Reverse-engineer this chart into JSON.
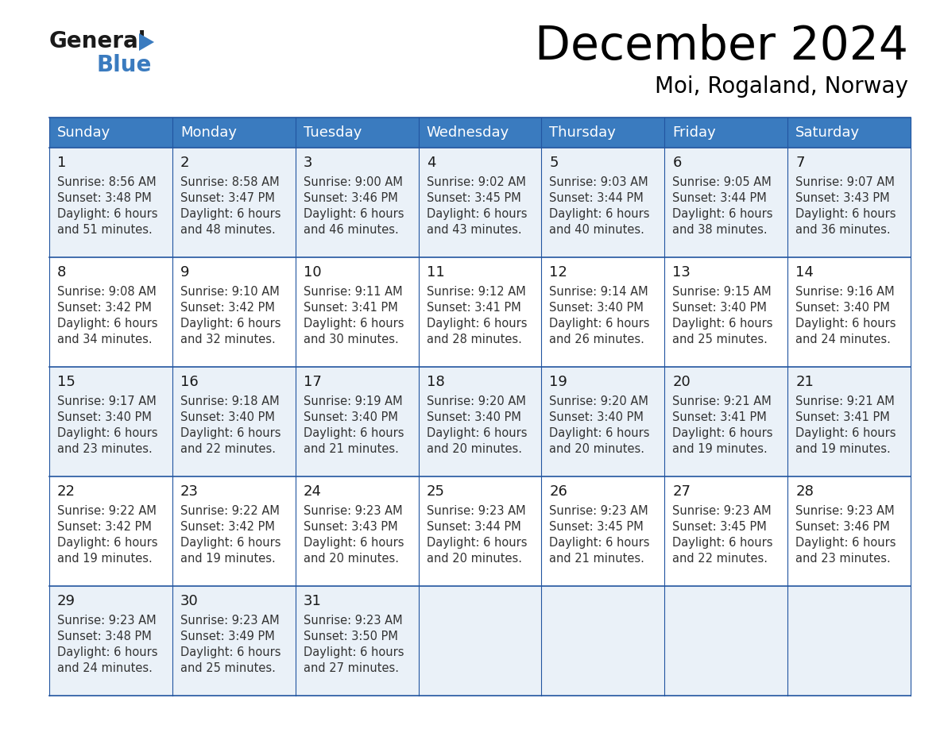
{
  "title": "December 2024",
  "subtitle": "Moi, Rogaland, Norway",
  "header_bg_color": "#3a7bbf",
  "header_text_color": "#ffffff",
  "row_line_color": "#2255a0",
  "days_of_week": [
    "Sunday",
    "Monday",
    "Tuesday",
    "Wednesday",
    "Thursday",
    "Friday",
    "Saturday"
  ],
  "calendar_data": [
    [
      {
        "day": 1,
        "sunrise": "8:56 AM",
        "sunset": "3:48 PM",
        "daylight_suffix": "51 minutes."
      },
      {
        "day": 2,
        "sunrise": "8:58 AM",
        "sunset": "3:47 PM",
        "daylight_suffix": "48 minutes."
      },
      {
        "day": 3,
        "sunrise": "9:00 AM",
        "sunset": "3:46 PM",
        "daylight_suffix": "46 minutes."
      },
      {
        "day": 4,
        "sunrise": "9:02 AM",
        "sunset": "3:45 PM",
        "daylight_suffix": "43 minutes."
      },
      {
        "day": 5,
        "sunrise": "9:03 AM",
        "sunset": "3:44 PM",
        "daylight_suffix": "40 minutes."
      },
      {
        "day": 6,
        "sunrise": "9:05 AM",
        "sunset": "3:44 PM",
        "daylight_suffix": "38 minutes."
      },
      {
        "day": 7,
        "sunrise": "9:07 AM",
        "sunset": "3:43 PM",
        "daylight_suffix": "36 minutes."
      }
    ],
    [
      {
        "day": 8,
        "sunrise": "9:08 AM",
        "sunset": "3:42 PM",
        "daylight_suffix": "34 minutes."
      },
      {
        "day": 9,
        "sunrise": "9:10 AM",
        "sunset": "3:42 PM",
        "daylight_suffix": "32 minutes."
      },
      {
        "day": 10,
        "sunrise": "9:11 AM",
        "sunset": "3:41 PM",
        "daylight_suffix": "30 minutes."
      },
      {
        "day": 11,
        "sunrise": "9:12 AM",
        "sunset": "3:41 PM",
        "daylight_suffix": "28 minutes."
      },
      {
        "day": 12,
        "sunrise": "9:14 AM",
        "sunset": "3:40 PM",
        "daylight_suffix": "26 minutes."
      },
      {
        "day": 13,
        "sunrise": "9:15 AM",
        "sunset": "3:40 PM",
        "daylight_suffix": "25 minutes."
      },
      {
        "day": 14,
        "sunrise": "9:16 AM",
        "sunset": "3:40 PM",
        "daylight_suffix": "24 minutes."
      }
    ],
    [
      {
        "day": 15,
        "sunrise": "9:17 AM",
        "sunset": "3:40 PM",
        "daylight_suffix": "23 minutes."
      },
      {
        "day": 16,
        "sunrise": "9:18 AM",
        "sunset": "3:40 PM",
        "daylight_suffix": "22 minutes."
      },
      {
        "day": 17,
        "sunrise": "9:19 AM",
        "sunset": "3:40 PM",
        "daylight_suffix": "21 minutes."
      },
      {
        "day": 18,
        "sunrise": "9:20 AM",
        "sunset": "3:40 PM",
        "daylight_suffix": "20 minutes."
      },
      {
        "day": 19,
        "sunrise": "9:20 AM",
        "sunset": "3:40 PM",
        "daylight_suffix": "20 minutes."
      },
      {
        "day": 20,
        "sunrise": "9:21 AM",
        "sunset": "3:41 PM",
        "daylight_suffix": "19 minutes."
      },
      {
        "day": 21,
        "sunrise": "9:21 AM",
        "sunset": "3:41 PM",
        "daylight_suffix": "19 minutes."
      }
    ],
    [
      {
        "day": 22,
        "sunrise": "9:22 AM",
        "sunset": "3:42 PM",
        "daylight_suffix": "19 minutes."
      },
      {
        "day": 23,
        "sunrise": "9:22 AM",
        "sunset": "3:42 PM",
        "daylight_suffix": "19 minutes."
      },
      {
        "day": 24,
        "sunrise": "9:23 AM",
        "sunset": "3:43 PM",
        "daylight_suffix": "20 minutes."
      },
      {
        "day": 25,
        "sunrise": "9:23 AM",
        "sunset": "3:44 PM",
        "daylight_suffix": "20 minutes."
      },
      {
        "day": 26,
        "sunrise": "9:23 AM",
        "sunset": "3:45 PM",
        "daylight_suffix": "21 minutes."
      },
      {
        "day": 27,
        "sunrise": "9:23 AM",
        "sunset": "3:45 PM",
        "daylight_suffix": "22 minutes."
      },
      {
        "day": 28,
        "sunrise": "9:23 AM",
        "sunset": "3:46 PM",
        "daylight_suffix": "23 minutes."
      }
    ],
    [
      {
        "day": 29,
        "sunrise": "9:23 AM",
        "sunset": "3:48 PM",
        "daylight_suffix": "24 minutes."
      },
      {
        "day": 30,
        "sunrise": "9:23 AM",
        "sunset": "3:49 PM",
        "daylight_suffix": "25 minutes."
      },
      {
        "day": 31,
        "sunrise": "9:23 AM",
        "sunset": "3:50 PM",
        "daylight_suffix": "27 minutes."
      },
      null,
      null,
      null,
      null
    ]
  ],
  "row_bg_colors": [
    "#eaf1f8",
    "#ffffff",
    "#eaf1f8",
    "#ffffff",
    "#eaf1f8"
  ]
}
